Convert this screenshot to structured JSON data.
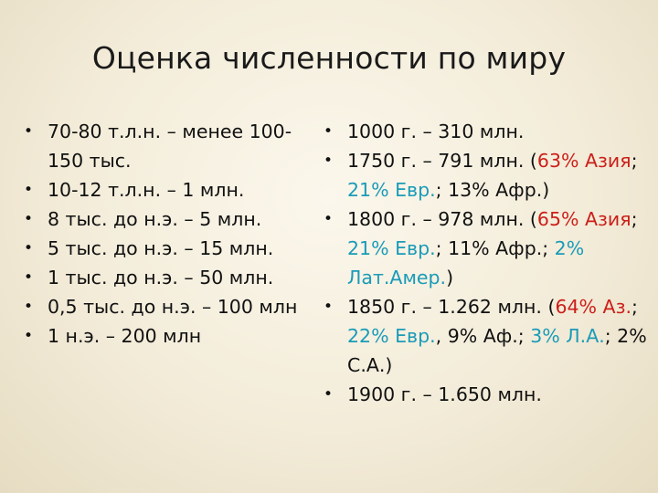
{
  "slide": {
    "title": "Оценка численности по миру",
    "left_items": [
      "70-80 т.л.н. – менее 100-150 тыс.",
      "10-12 т.л.н. – 1 млн.",
      "8 тыс. до н.э. – 5 млн.",
      "5 тыс. до н.э. – 15 млн.",
      "1 тыс. до н.э. – 50 млн.",
      "0,5 тыс. до н.э. – 100 млн",
      "1 н.э. – 200 млн"
    ],
    "right_items": [
      {
        "text": "1000 г. – 310 млн."
      },
      {
        "lead": "1750 г. – 791 млн. (",
        "p1": "63% Азия",
        "s1": "; ",
        "p2": "21% Евр.",
        "s2": "; 13% Афр.)"
      },
      {
        "lead": "1800 г. – 978 млн. (",
        "p1": "65% Азия",
        "s1": "; ",
        "p2": "21% Евр.",
        "s2": "; 11% Афр.; ",
        "p3": "2% Лат.Амер.",
        "s3": ")"
      },
      {
        "lead": "1850 г. – 1.262 млн. (",
        "p1": "64% Аз.",
        "s1": "; ",
        "p2": "22% Евр.",
        "s2": ", 9% Аф.; ",
        "p3": "3% Л.А.",
        "s3": "; 2% С.А.)"
      },
      {
        "text": "1900 г. – 1.650 млн."
      }
    ],
    "bullet_glyph": "•",
    "colors": {
      "red": "#cc1f1a",
      "teal": "#1a9bb8"
    }
  }
}
